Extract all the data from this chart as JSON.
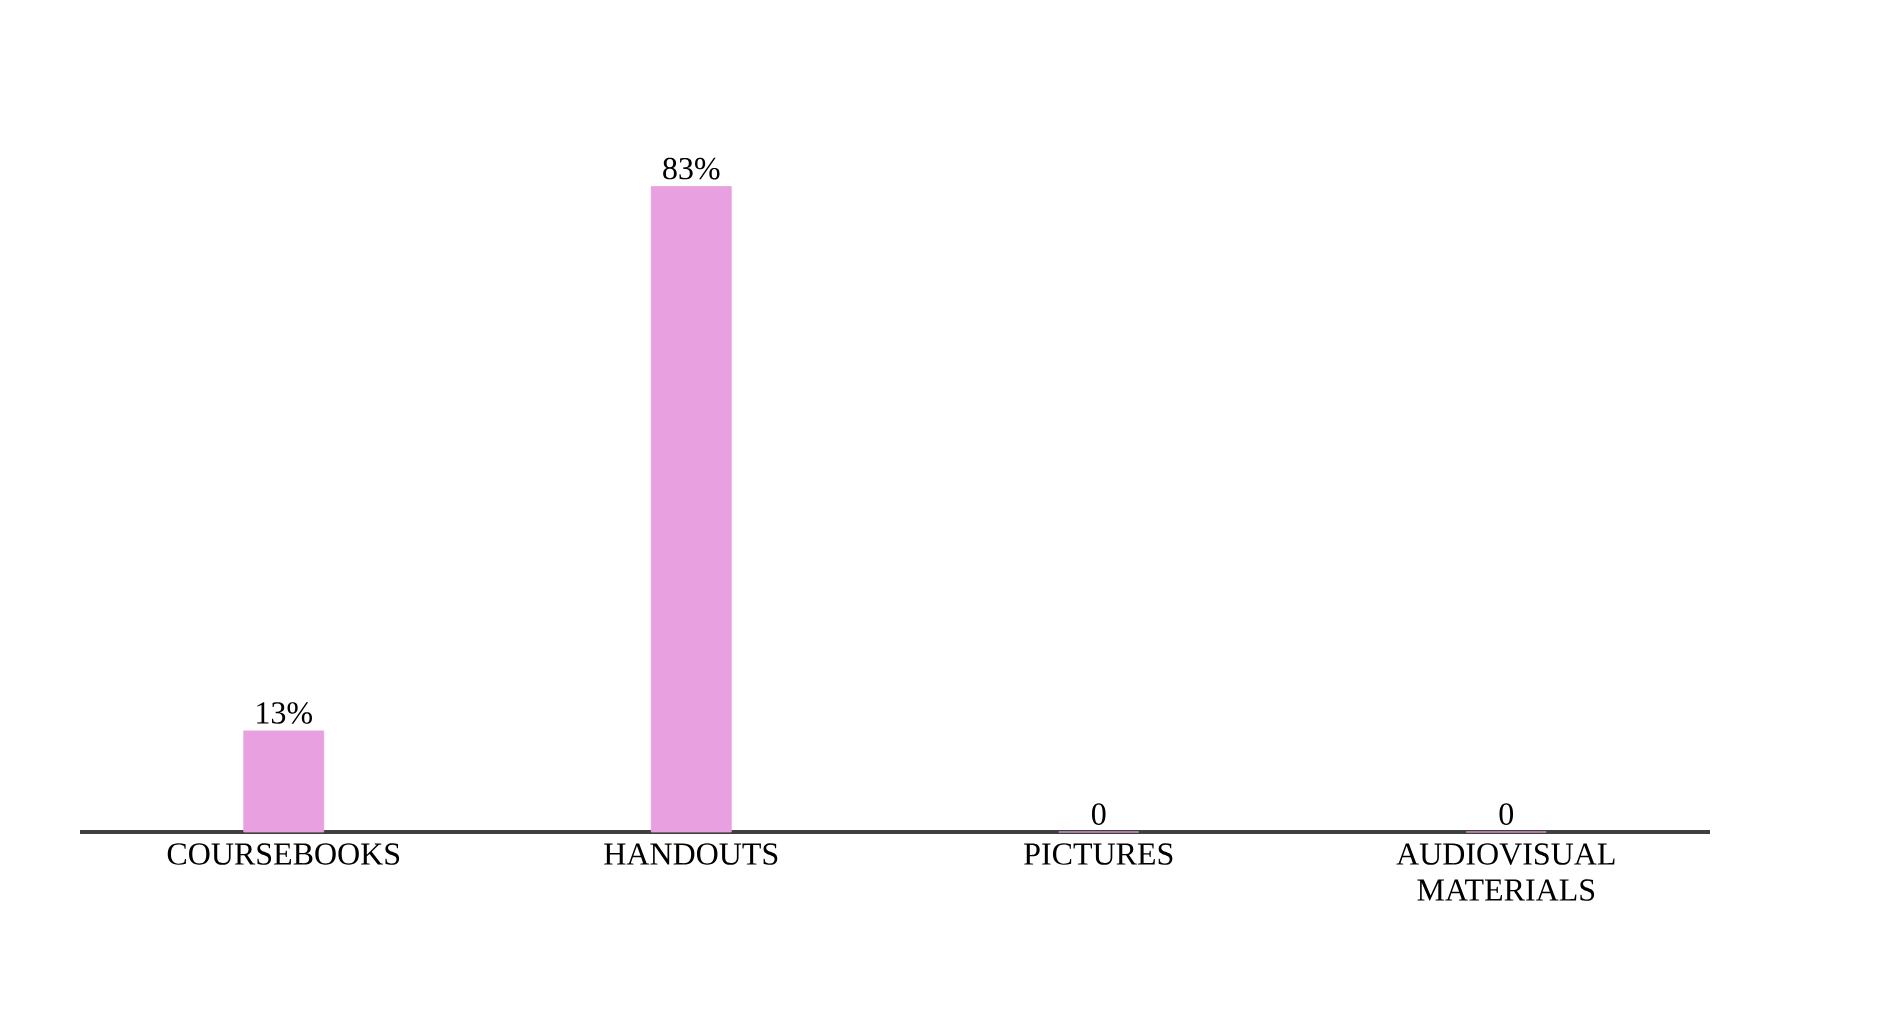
{
  "chart_data": {
    "type": "bar",
    "categories": [
      "COURSEBOOKS",
      "HANDOUTS",
      "PICTURES",
      "AUDIOVISUAL MATERIALS"
    ],
    "values": [
      13,
      83,
      0,
      0
    ],
    "value_labels": [
      "13%",
      "83%",
      "0",
      "0"
    ],
    "color": "#e8a0e0"
  }
}
